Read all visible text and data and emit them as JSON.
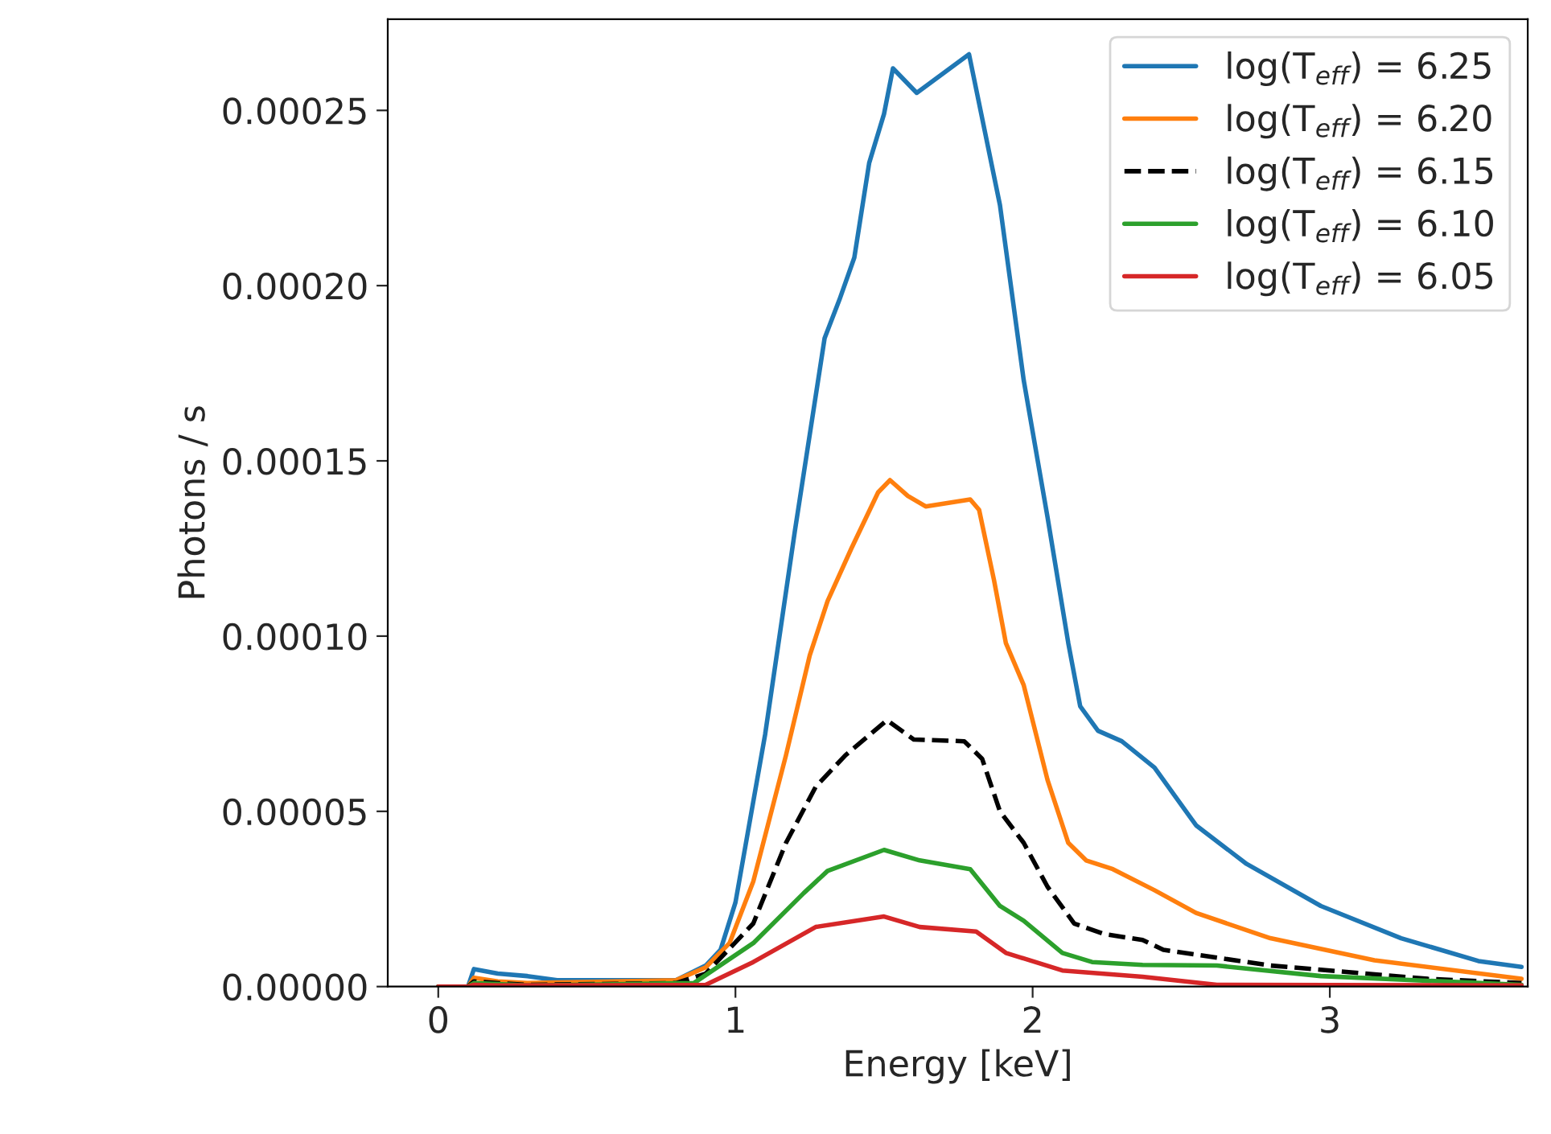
{
  "chart_data": {
    "type": "line",
    "xlabel": "Energy [keV]",
    "ylabel": "Photons / s",
    "xlim": [
      -0.17,
      3.666
    ],
    "ylim": [
      0,
      0.000276
    ],
    "xticks": [
      0,
      1,
      2,
      3
    ],
    "yticks": [
      {
        "value": 0,
        "label": "0.00000"
      },
      {
        "value": 5e-05,
        "label": "0.00005"
      },
      {
        "value": 0.0001,
        "label": "0.00010"
      },
      {
        "value": 0.00015,
        "label": "0.00015"
      },
      {
        "value": 0.0002,
        "label": "0.00020"
      },
      {
        "value": 0.00025,
        "label": "0.00025"
      }
    ],
    "grid": false,
    "legend": "top right",
    "marker": "none",
    "series": [
      {
        "name": "log(T$_{eff}$) = 6.25",
        "color": "#1f77b4",
        "line_style": "solid",
        "x": [
          0,
          0.1,
          0.12,
          0.2,
          0.3,
          0.4,
          0.8,
          0.9,
          0.95,
          1.0,
          1.1,
          1.2,
          1.3,
          1.35,
          1.4,
          1.45,
          1.5,
          1.53,
          1.61,
          1.786,
          1.89,
          1.97,
          2.05,
          2.12,
          2.16,
          2.22,
          2.3,
          2.41,
          2.55,
          2.72,
          2.97,
          3.24,
          3.5,
          3.645
        ],
        "values": [
          0,
          0,
          5e-06,
          3.7e-06,
          3e-06,
          1.8e-06,
          1.8e-06,
          6e-06,
          1.05e-05,
          2.4e-05,
          7.2e-05,
          0.00013,
          0.000185,
          0.000196,
          0.000208,
          0.000235,
          0.000249,
          0.000262,
          0.000255,
          0.000266,
          0.000223,
          0.000173,
          0.000134,
          9.8e-05,
          8e-05,
          7.3e-05,
          7e-05,
          6.25e-05,
          4.6e-05,
          3.5e-05,
          2.3e-05,
          1.38e-05,
          7.3e-06,
          5.6e-06
        ]
      },
      {
        "name": "log(T$_{eff}$) = 6.20",
        "color": "#ff7f0e",
        "line_style": "solid",
        "x": [
          0,
          0.1,
          0.12,
          0.2,
          0.3,
          0.8,
          0.9,
          0.98,
          1.06,
          1.17,
          1.25,
          1.31,
          1.39,
          1.48,
          1.52,
          1.58,
          1.64,
          1.79,
          1.82,
          1.87,
          1.91,
          1.97,
          2.05,
          2.12,
          2.18,
          2.27,
          2.41,
          2.55,
          2.8,
          3.15,
          3.645
        ],
        "values": [
          0,
          0,
          2.5e-06,
          1.5e-06,
          1e-06,
          1.8e-06,
          5.5e-06,
          1.24e-05,
          3e-05,
          6.6e-05,
          9.45e-05,
          0.00011,
          0.000125,
          0.000141,
          0.0001445,
          0.00014,
          0.000137,
          0.000139,
          0.000136,
          0.000116,
          9.8e-05,
          8.6e-05,
          5.9e-05,
          4.1e-05,
          3.6e-05,
          3.35e-05,
          2.75e-05,
          2.1e-05,
          1.38e-05,
          7.5e-06,
          2.2e-06
        ]
      },
      {
        "name": "log(T$_{eff}$) = 6.15",
        "color": "#000000",
        "line_style": "dashed",
        "x": [
          0,
          0.1,
          0.12,
          0.2,
          0.3,
          0.8,
          0.9,
          1.06,
          1.17,
          1.27,
          1.37,
          1.51,
          1.6,
          1.77,
          1.83,
          1.89,
          1.97,
          2.05,
          2.14,
          2.24,
          2.37,
          2.44,
          2.8,
          3.33,
          3.645
        ],
        "values": [
          0,
          0,
          1.5e-06,
          1e-06,
          5e-07,
          1e-06,
          3.7e-06,
          1.8e-05,
          4.1e-05,
          5.7e-05,
          6.6e-05,
          7.6e-05,
          7.05e-05,
          7e-05,
          6.5e-05,
          5e-05,
          4.1e-05,
          2.85e-05,
          1.8e-05,
          1.5e-05,
          1.33e-05,
          1.05e-05,
          6e-06,
          2.2e-06,
          1e-06
        ]
      },
      {
        "name": "log(T$_{eff}$) = 6.10",
        "color": "#2ca02c",
        "line_style": "solid",
        "x": [
          0,
          0.1,
          0.12,
          0.2,
          0.3,
          0.86,
          1.06,
          1.23,
          1.31,
          1.5,
          1.62,
          1.79,
          1.89,
          1.97,
          2.1,
          2.2,
          2.37,
          2.62,
          2.97,
          3.645
        ],
        "values": [
          0,
          0,
          1e-06,
          7e-07,
          3e-07,
          1e-06,
          1.24e-05,
          2.67e-05,
          3.3e-05,
          3.9e-05,
          3.6e-05,
          3.35e-05,
          2.3e-05,
          1.88e-05,
          9.6e-06,
          7e-06,
          6.2e-06,
          6e-06,
          3e-06,
          5e-07
        ]
      },
      {
        "name": "log(T$_{eff}$) = 6.05",
        "color": "#d62728",
        "line_style": "solid",
        "x": [
          0,
          0.1,
          0.12,
          0.2,
          0.9,
          1.06,
          1.27,
          1.5,
          1.62,
          1.81,
          1.91,
          2.1,
          2.37,
          2.62,
          3.645
        ],
        "values": [
          0,
          0,
          5e-07,
          3e-07,
          5e-07,
          7e-06,
          1.7e-05,
          2e-05,
          1.7e-05,
          1.57e-05,
          9.6e-06,
          4.6e-06,
          2.8e-06,
          5e-07,
          3e-07
        ]
      }
    ]
  }
}
